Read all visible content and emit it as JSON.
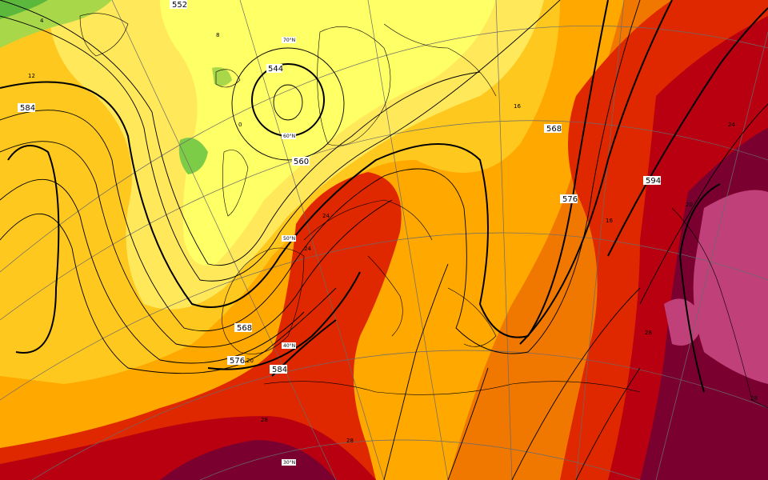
{
  "map": {
    "type": "weather-chart",
    "projection": "polar-stereographic",
    "fields": {
      "shaded": "850 hPa temperature (°C)",
      "contours": "500 hPa geopotential height (dam)"
    }
  },
  "height_contour_labels": [
    "552",
    "544",
    "560",
    "568",
    "568",
    "576",
    "576",
    "584",
    "584",
    "594"
  ],
  "temperature_labels": [
    "0",
    "4",
    "8",
    "12",
    "16",
    "20",
    "24",
    "28",
    "24",
    "16",
    "20",
    "24",
    "28",
    "28",
    "28"
  ],
  "latitude_labels": [
    "70°N",
    "60°N",
    "50°N",
    "40°N",
    "30°N"
  ],
  "temperature_colors": {
    "t_m4": "#5cb83c",
    "t_0": "#a8d84a",
    "t_4": "#ffff66",
    "t_8": "#ffe85a",
    "t_12": "#ffc81e",
    "t_16": "#ffa800",
    "t_20": "#f07800",
    "t_24": "#e02800",
    "t_28": "#b80010",
    "t_32": "#7a0030",
    "t_36": "#c0407a"
  }
}
